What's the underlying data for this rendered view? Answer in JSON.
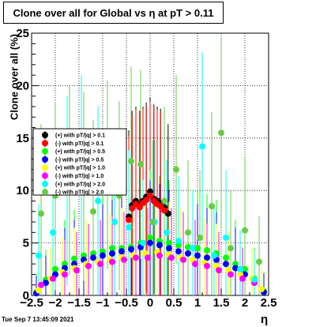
{
  "title": "Clone  over all for Global vs    η at pT > 0.11",
  "footer": "Tue Sep  7 13:45:09 2021",
  "chart_data": {
    "type": "scatter",
    "title": "Clone  over all for Global vs    η at pT > 0.11",
    "xlabel": "η",
    "ylabel": "Clone  over all (%)",
    "xlim": [
      -2.5,
      2.5
    ],
    "ylim": [
      0,
      25
    ],
    "grid": true,
    "legend_position": "center-left",
    "x_ticks": [
      "−2.5",
      "−2",
      "−1.5",
      "−1",
      "−0.5",
      "0",
      "0.5",
      "1",
      "1.5",
      "2",
      "2.5"
    ],
    "y_ticks": [
      "0",
      "5",
      "10",
      "15",
      "20",
      "25"
    ],
    "series": [
      {
        "name": "(+) with pT/|q| > 0.1",
        "color": "#000000",
        "marker": "circle",
        "x": [
          -0.45,
          -0.38,
          -0.3,
          -0.22,
          -0.15,
          -0.08,
          0.0,
          0.08,
          0.15,
          0.22,
          0.3,
          0.38
        ],
        "y": [
          7.5,
          8.6,
          9.0,
          8.6,
          9.0,
          9.4,
          9.9,
          9.2,
          9.0,
          8.8,
          8.4,
          7.8
        ]
      },
      {
        "name": "(-) with pT/|q| > 0.1",
        "color": "#ff0000",
        "marker": "circle",
        "x": [
          -0.45,
          -0.38,
          -0.3,
          -0.22,
          -0.15,
          -0.08,
          0.0,
          0.08,
          0.15,
          0.22,
          0.3
        ],
        "y": [
          7.2,
          8.3,
          8.7,
          8.4,
          8.8,
          9.1,
          9.5,
          9.0,
          8.7,
          8.5,
          8.1
        ]
      },
      {
        "name": "(+) with pT/|q| > 0.5",
        "color": "#00ff00",
        "marker": "circle",
        "x": [
          -2.4,
          -2.2,
          -2.0,
          -1.8,
          -1.6,
          -1.4,
          -1.2,
          -1.0,
          -0.8,
          -0.6,
          -0.4,
          -0.2,
          0.0,
          0.2,
          0.4,
          0.6,
          0.8,
          1.0,
          1.2,
          1.4,
          1.6,
          1.8,
          2.0,
          2.2,
          2.4
        ],
        "y": [
          0.3,
          1.5,
          2.5,
          3.0,
          3.5,
          3.8,
          4.0,
          4.2,
          4.5,
          4.5,
          4.6,
          5.0,
          5.5,
          5.2,
          5.0,
          4.8,
          4.6,
          4.5,
          4.3,
          4.0,
          3.6,
          3.0,
          2.5,
          1.6,
          0.4
        ]
      },
      {
        "name": "(-) with pT/|q| > 0.5",
        "color": "#0000ff",
        "marker": "circle",
        "x": [
          -2.4,
          -2.2,
          -2.0,
          -1.8,
          -1.6,
          -1.4,
          -1.2,
          -1.0,
          -0.8,
          -0.6,
          -0.4,
          -0.2,
          0.0,
          0.2,
          0.4,
          0.6,
          0.8,
          1.0,
          1.2,
          1.4,
          1.6,
          1.8,
          2.0,
          2.2,
          2.4
        ],
        "y": [
          0.2,
          1.2,
          2.0,
          2.6,
          3.0,
          3.4,
          3.6,
          3.8,
          4.0,
          4.2,
          4.4,
          4.6,
          5.0,
          4.8,
          4.5,
          4.2,
          4.0,
          3.8,
          3.6,
          3.4,
          3.0,
          2.6,
          2.0,
          1.2,
          0.3
        ]
      },
      {
        "name": "(+) with pT/|q| > 1.0",
        "color": "#ffff00",
        "marker": "circle",
        "x": [
          -2.35,
          -2.1,
          -1.85,
          -1.6,
          -1.35,
          -1.1,
          -0.85,
          -0.6,
          -0.35,
          -0.1,
          0.15,
          0.4,
          0.65,
          0.9,
          1.15,
          1.4,
          1.65,
          1.9,
          2.15,
          2.35
        ],
        "y": [
          0.5,
          1.6,
          2.2,
          2.6,
          3.0,
          3.2,
          3.4,
          3.6,
          3.8,
          4.0,
          4.1,
          3.9,
          3.6,
          3.4,
          3.1,
          2.8,
          2.4,
          2.0,
          1.6,
          0.6
        ]
      },
      {
        "name": "(-) with pT/|q| > 1.0",
        "color": "#ff00ff",
        "marker": "circle",
        "x": [
          -2.3,
          -2.05,
          -1.8,
          -1.55,
          -1.3,
          -1.05,
          -0.8,
          -0.55,
          -0.3,
          -0.05,
          0.2,
          0.45,
          0.7,
          0.95,
          1.2,
          1.45,
          1.7,
          1.95,
          2.2
        ],
        "y": [
          1.0,
          1.6,
          2.0,
          2.4,
          2.8,
          3.0,
          3.2,
          3.4,
          3.6,
          3.6,
          3.8,
          3.6,
          3.4,
          3.0,
          2.8,
          2.4,
          2.0,
          1.6,
          1.2
        ]
      },
      {
        "name": "(+) with pT/|q| > 2.0",
        "color": "#00ffff",
        "marker": "circle",
        "x": [
          -2.35,
          -2.05,
          -1.75,
          -1.45,
          -1.1,
          -0.75,
          -0.45,
          -0.15,
          0.1,
          0.35,
          0.6,
          0.9,
          1.1,
          1.35,
          1.6,
          1.9,
          2.2
        ],
        "y": [
          3.8,
          6.0,
          10.0,
          12.0,
          9.0,
          7.0,
          6.5,
          5.0,
          7.0,
          6.0,
          5.2,
          4.5,
          14.2,
          3.8,
          5.5,
          2.5,
          1.5
        ]
      },
      {
        "name": "(-) with pT/|q| > 2.0",
        "color": "#66cc44",
        "marker": "circle",
        "x": [
          -2.3,
          -2.0,
          -1.7,
          -1.4,
          -1.2,
          -0.9,
          -0.65,
          -0.4,
          -0.2,
          0.05,
          0.3,
          0.55,
          0.8,
          1.05,
          1.3,
          1.5,
          1.7,
          2.0,
          2.3
        ],
        "y": [
          7.8,
          9.5,
          11.0,
          10.4,
          8.0,
          11.5,
          9.5,
          12.8,
          12.5,
          7.0,
          9.0,
          12.0,
          6.0,
          5.5,
          8.5,
          15.5,
          4.5,
          6.2,
          3.2
        ]
      }
    ]
  }
}
